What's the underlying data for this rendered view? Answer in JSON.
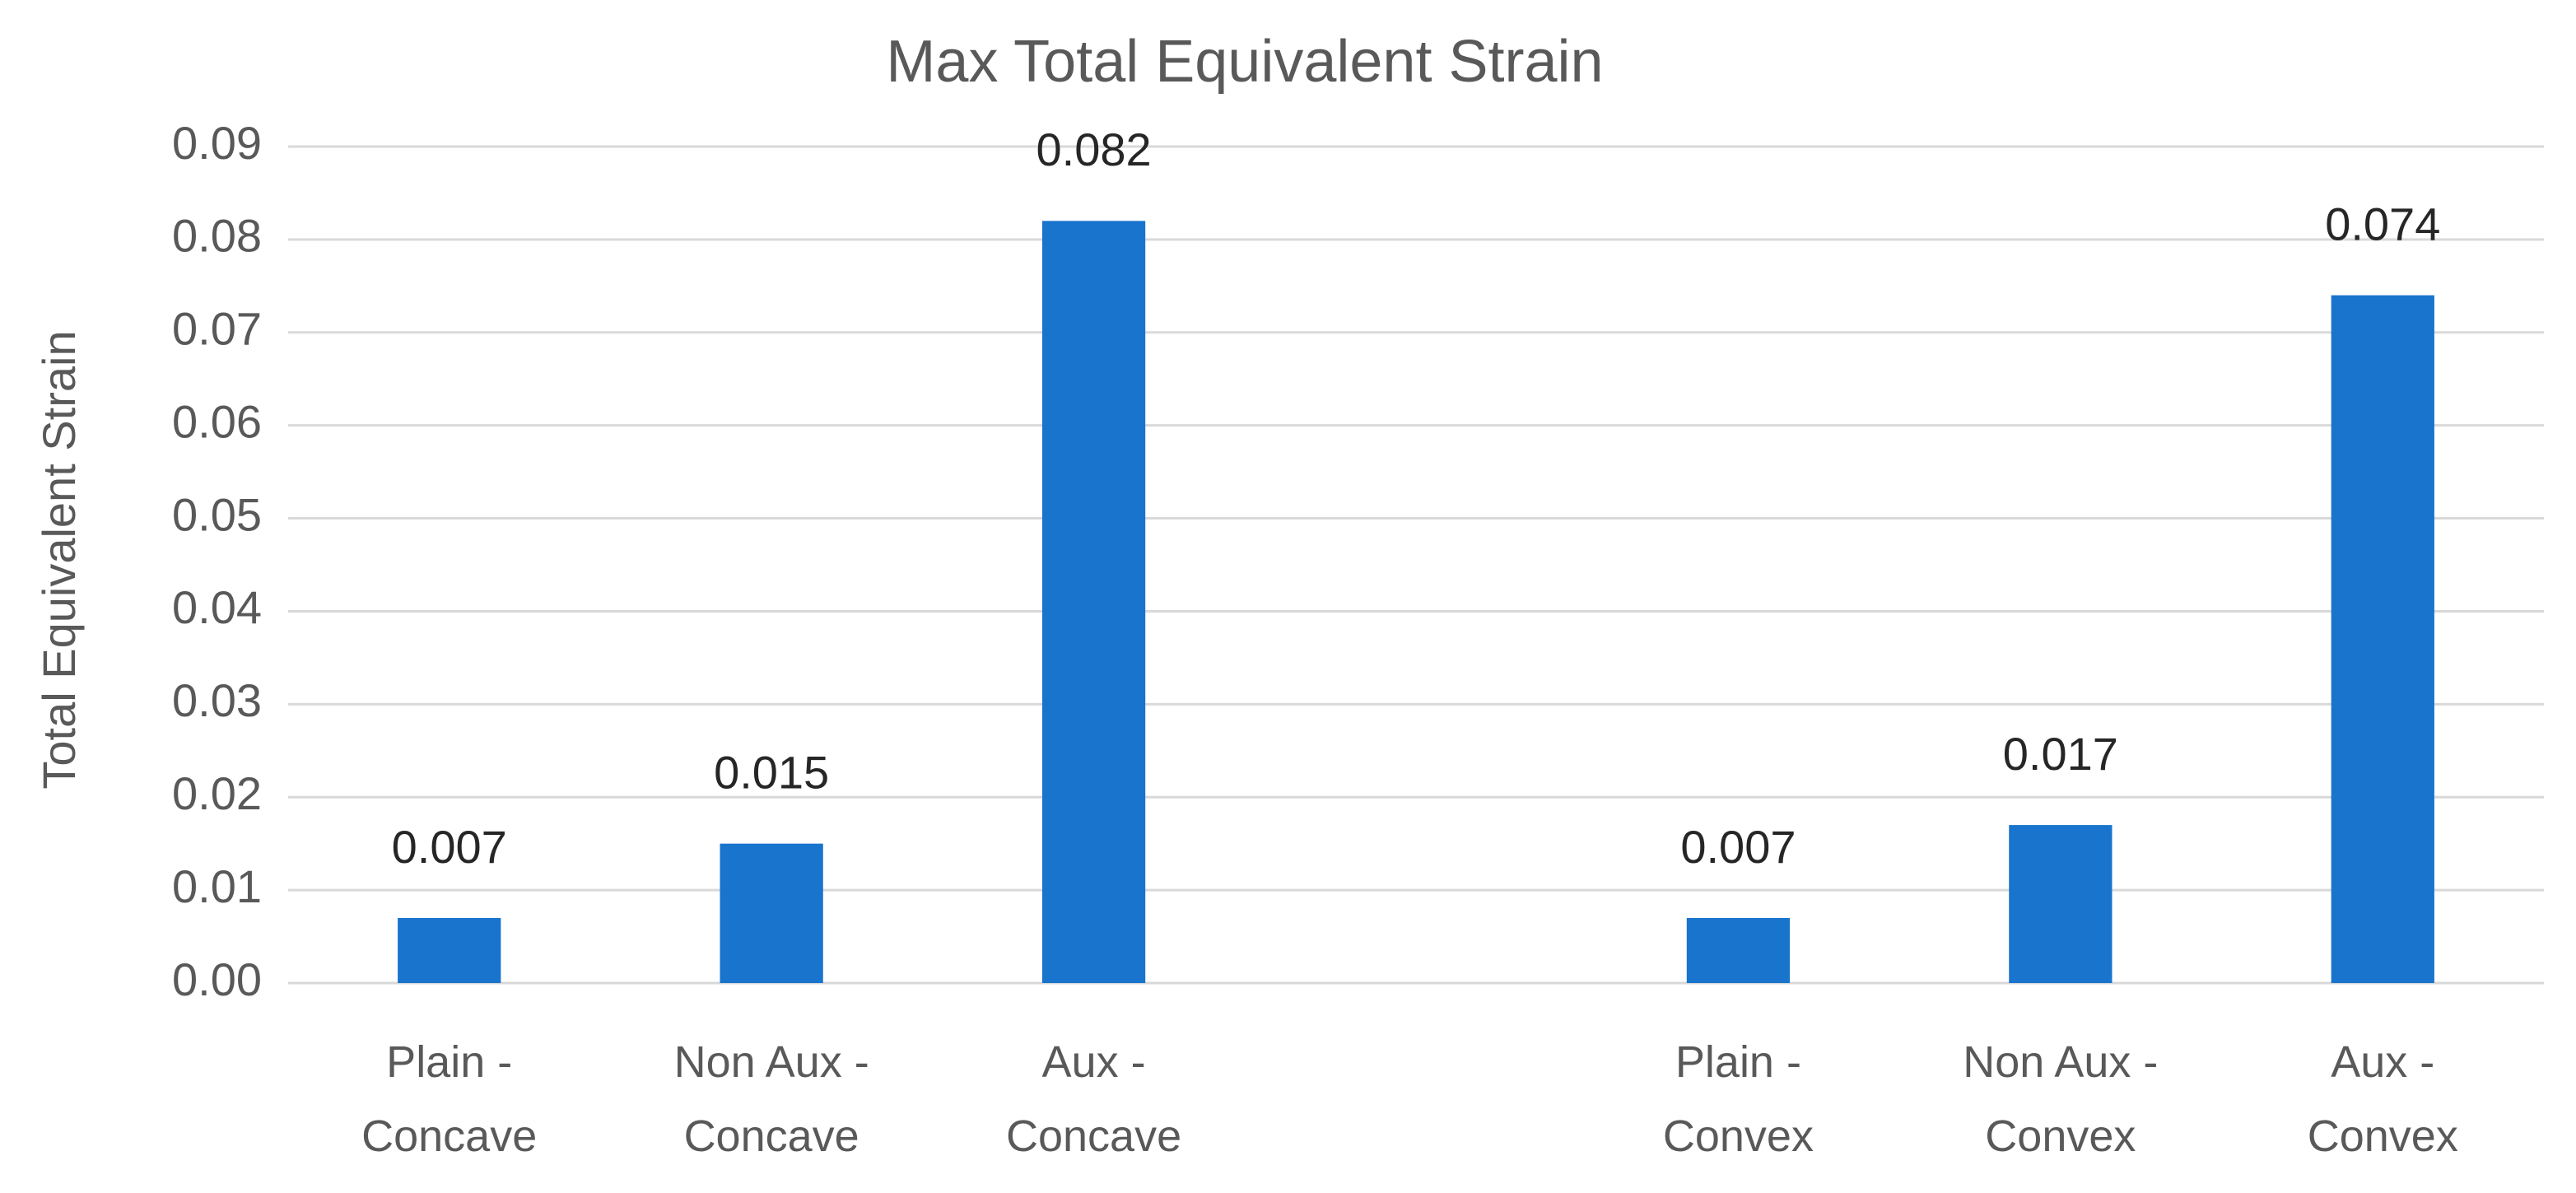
{
  "chart_data": {
    "type": "bar",
    "title": "Max Total Equivalent Strain",
    "y_label": "Total Equivalent Strain",
    "categories": [
      "Plain - Concave",
      "Non Aux - Concave",
      "Aux - Concave",
      null,
      "Plain - Convex",
      "Non Aux - Convex",
      "Aux - Convex"
    ],
    "values": [
      0.007,
      0.015,
      0.082,
      null,
      0.007,
      0.017,
      0.074
    ],
    "color": "#1874cd",
    "ylim": [
      0,
      0.09
    ],
    "yticks": [
      {
        "value": 0,
        "label": "0.00"
      },
      0.01,
      0.02,
      0.03,
      0.04,
      0.05,
      0.06,
      0.07,
      0.08,
      0.09
    ],
    "grid": true
  }
}
